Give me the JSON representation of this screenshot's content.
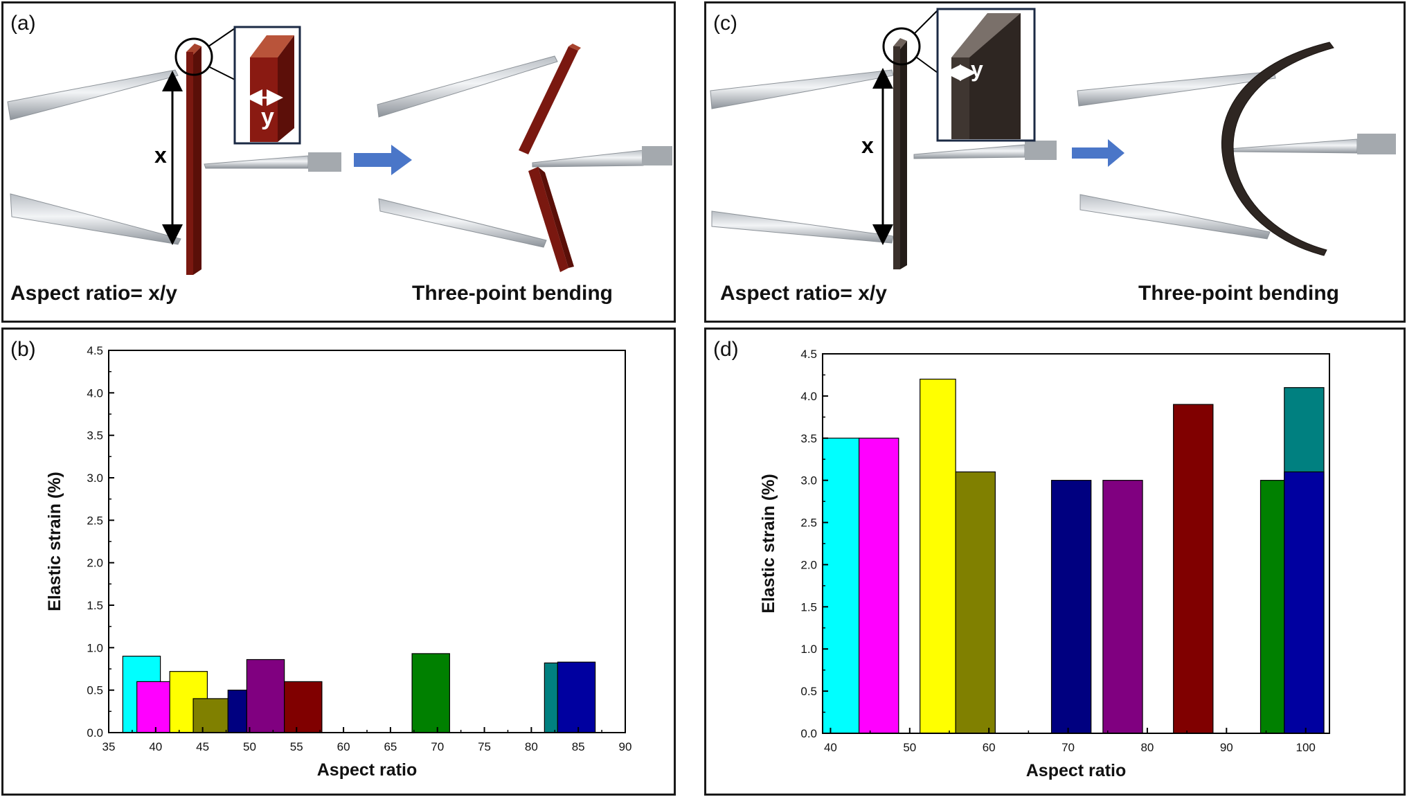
{
  "panels": {
    "a": {
      "label": "(a)",
      "caption_left": "Aspect ratio= x/y",
      "caption_right": "Three-point bending",
      "dim_x": "x",
      "dim_y": "y",
      "pillar_color": "#7a1810"
    },
    "c": {
      "label": "(c)",
      "caption_left": "Aspect ratio= x/y",
      "caption_right": "Three-point bending",
      "dim_x": "x",
      "dim_y": "y",
      "pillar_color": "#3a302b"
    },
    "b": {
      "label": "(b)"
    },
    "d": {
      "label": "(d)"
    }
  },
  "chart_data": [
    {
      "panel": "b",
      "type": "bar",
      "xlabel": "Aspect ratio",
      "ylabel": "Elastic strain (%)",
      "xlim": [
        35,
        90
      ],
      "ylim": [
        0,
        4.5
      ],
      "xticks": [
        35,
        40,
        45,
        50,
        55,
        60,
        65,
        70,
        75,
        80,
        85,
        90
      ],
      "yticks": [
        0.0,
        0.5,
        1.0,
        1.5,
        2.0,
        2.5,
        3.0,
        3.5,
        4.0,
        4.5
      ],
      "bars": [
        {
          "x0": 36.5,
          "x1": 40.5,
          "value": 0.9,
          "color": "#00ffff"
        },
        {
          "x0": 38.0,
          "x1": 41.7,
          "value": 0.6,
          "color": "#ff00ff"
        },
        {
          "x0": 41.5,
          "x1": 45.5,
          "value": 0.72,
          "color": "#ffff00"
        },
        {
          "x0": 44.0,
          "x1": 47.7,
          "value": 0.4,
          "color": "#808000"
        },
        {
          "x0": 47.7,
          "x1": 49.7,
          "value": 0.5,
          "color": "#000080"
        },
        {
          "x0": 49.7,
          "x1": 53.7,
          "value": 0.86,
          "color": "#800080"
        },
        {
          "x0": 53.7,
          "x1": 57.7,
          "value": 0.6,
          "color": "#800000"
        },
        {
          "x0": 67.3,
          "x1": 71.3,
          "value": 0.93,
          "color": "#008000"
        },
        {
          "x0": 81.4,
          "x1": 82.8,
          "value": 0.82,
          "color": "#008080"
        },
        {
          "x0": 82.8,
          "x1": 86.8,
          "value": 0.83,
          "color": "#0000a0"
        }
      ]
    },
    {
      "panel": "d",
      "type": "bar",
      "xlabel": "Aspect ratio",
      "ylabel": "Elastic strain (%)",
      "xlim": [
        39,
        103
      ],
      "ylim": [
        0,
        4.5
      ],
      "xticks": [
        40,
        50,
        60,
        70,
        80,
        90,
        100
      ],
      "yticks": [
        0.0,
        0.5,
        1.0,
        1.5,
        2.0,
        2.5,
        3.0,
        3.5,
        4.0,
        4.5
      ],
      "bars": [
        {
          "x0": 39.0,
          "x1": 43.6,
          "value": 3.5,
          "color": "#00ffff"
        },
        {
          "x0": 43.6,
          "x1": 48.6,
          "value": 3.5,
          "color": "#ff00ff"
        },
        {
          "x0": 51.3,
          "x1": 55.8,
          "value": 4.2,
          "color": "#ffff00"
        },
        {
          "x0": 55.8,
          "x1": 60.8,
          "value": 3.1,
          "color": "#808000"
        },
        {
          "x0": 67.9,
          "x1": 72.9,
          "value": 3.0,
          "color": "#000080"
        },
        {
          "x0": 74.4,
          "x1": 79.4,
          "value": 3.0,
          "color": "#800080"
        },
        {
          "x0": 83.3,
          "x1": 88.3,
          "value": 3.9,
          "color": "#800000"
        },
        {
          "x0": 97.3,
          "x1": 102.3,
          "value": 4.1,
          "color": "#008080"
        },
        {
          "x0": 94.3,
          "x1": 97.3,
          "value": 3.0,
          "color": "#008000"
        },
        {
          "x0": 97.3,
          "x1": 102.3,
          "value": 3.1,
          "color": "#0000a0"
        }
      ]
    }
  ]
}
